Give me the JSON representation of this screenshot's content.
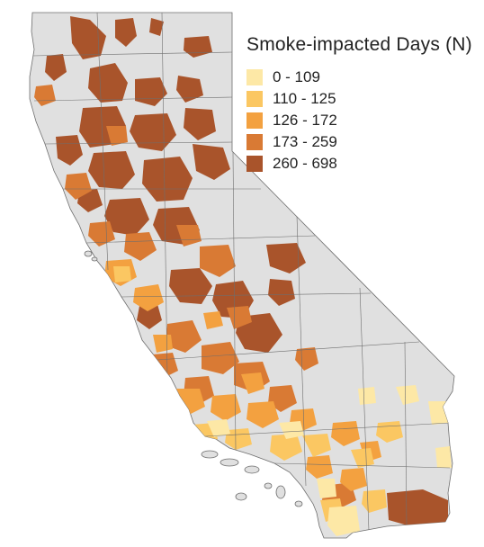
{
  "legend": {
    "title": "Smoke-impacted Days (N)",
    "classes": [
      {
        "label": "0 - 109",
        "color": "#fde8a6"
      },
      {
        "label": "110 - 125",
        "color": "#fbc762"
      },
      {
        "label": "126 - 172",
        "color": "#f3a140"
      },
      {
        "label": "173 - 259",
        "color": "#d97a34"
      },
      {
        "label": "260 - 698",
        "color": "#a9542b"
      }
    ]
  },
  "map": {
    "land_color": "#e0e0e0",
    "boundary_color": "#6e6e6e",
    "background_color": "#ffffff"
  }
}
